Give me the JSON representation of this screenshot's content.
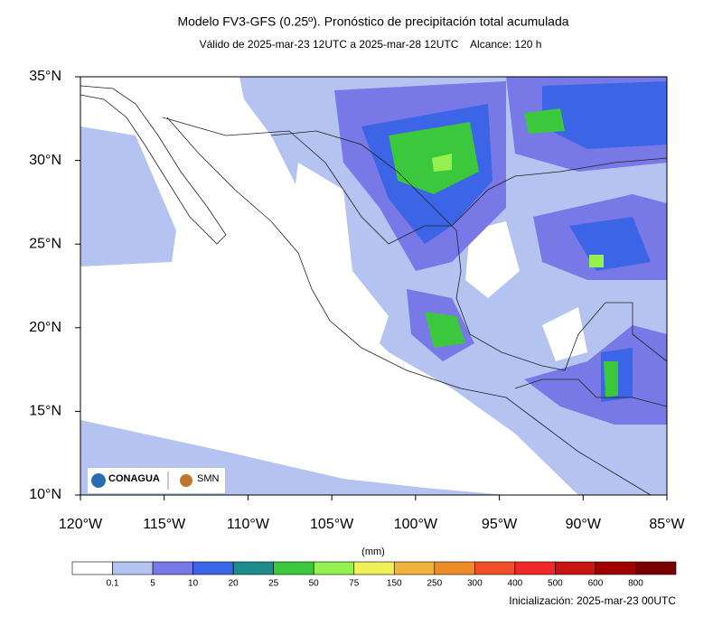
{
  "header": {
    "title": "Modelo FV3-GFS (0.25º). Pronóstico de precipitación total acumulada",
    "subtitle": "Válido de 2025-mar-23 12UTC a 2025-mar-28 12UTC    Alcance: 120 h"
  },
  "map": {
    "xlim": [
      -120,
      -85
    ],
    "ylim": [
      10,
      35
    ],
    "lat_ticks": [
      {
        "value": 35,
        "label": "35°N"
      },
      {
        "value": 30,
        "label": "30°N"
      },
      {
        "value": 25,
        "label": "25°N"
      },
      {
        "value": 20,
        "label": "20°N"
      },
      {
        "value": 15,
        "label": "15°N"
      },
      {
        "value": 10,
        "label": "10°N"
      }
    ],
    "lon_ticks": [
      {
        "value": -120,
        "label": "120°W"
      },
      {
        "value": -115,
        "label": "115°W"
      },
      {
        "value": -110,
        "label": "110°W"
      },
      {
        "value": -105,
        "label": "105°W"
      },
      {
        "value": -100,
        "label": "100°W"
      },
      {
        "value": -95,
        "label": "95°W"
      },
      {
        "value": -90,
        "label": "90°W"
      },
      {
        "value": -85,
        "label": "85°W"
      }
    ],
    "logos": [
      "CONAGUA",
      "SMN"
    ]
  },
  "colorbar": {
    "unit": "(mm)",
    "labels": [
      "0.1",
      "5",
      "10",
      "20",
      "25",
      "50",
      "75",
      "150",
      "250",
      "300",
      "400",
      "500",
      "600",
      "800"
    ],
    "colors": [
      "#ffffff",
      "#b4c3f0",
      "#7878e6",
      "#3c64e6",
      "#1e8c8c",
      "#3cc83c",
      "#96f050",
      "#f0f05a",
      "#f0b43c",
      "#f08c28",
      "#f05028",
      "#f02828",
      "#c81414",
      "#a00000",
      "#780000"
    ]
  },
  "footer": {
    "init": "Inicialización: 2025-mar-23 00UTC"
  }
}
